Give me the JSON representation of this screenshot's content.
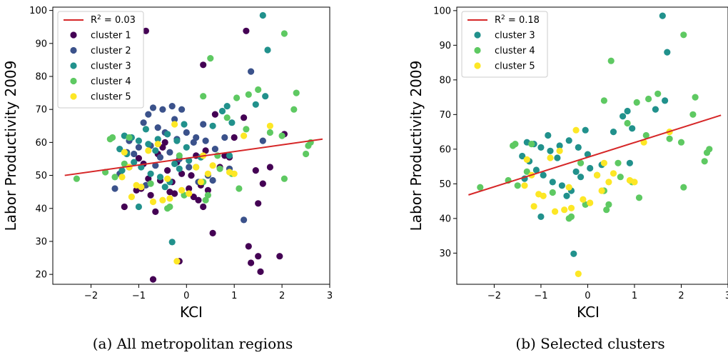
{
  "colors": {
    "cluster 1": "#440154",
    "cluster 2": "#3b528b",
    "cluster 3": "#21918c",
    "cluster 4": "#5ec962",
    "cluster 5": "#fde725",
    "fit": "#d62728"
  },
  "chart_data": [
    {
      "type": "scatter",
      "xlabel": "KCI",
      "ylabel": "Labor Productivity 2009",
      "caption": "(a) All metropolitan regions",
      "xlim": [
        -2.8,
        3.0
      ],
      "ylim": [
        17,
        101
      ],
      "xticks": [
        "−2",
        "−1",
        "0",
        "1",
        "2",
        "3"
      ],
      "xtick_values": [
        -2,
        -1,
        0,
        1,
        2,
        3
      ],
      "yticks": [
        "20",
        "30",
        "40",
        "50",
        "60",
        "70",
        "80",
        "90",
        "100"
      ],
      "ytick_values": [
        20,
        30,
        40,
        50,
        60,
        70,
        80,
        90,
        100
      ],
      "legend_placement": "upper-left",
      "fit": {
        "label_base": "R",
        "label_sup": "2",
        "label_rest": " = 0.03",
        "x": [
          -2.55,
          2.85
        ],
        "y": [
          50.0,
          61.0
        ]
      },
      "series": [
        {
          "name": "cluster 1",
          "points": [
            [
              -0.85,
              93.8
            ],
            [
              -0.7,
              18.5
            ],
            [
              1.25,
              93.8
            ],
            [
              0.35,
              83.5
            ],
            [
              -1.0,
              55.2
            ],
            [
              -0.9,
              53.5
            ],
            [
              -0.8,
              49.0
            ],
            [
              -0.6,
              56.5
            ],
            [
              -0.5,
              58.5
            ],
            [
              -0.4,
              51.5
            ],
            [
              -0.3,
              48.0
            ],
            [
              -0.2,
              54.0
            ],
            [
              -0.1,
              50.5
            ],
            [
              0.05,
              46.0
            ],
            [
              0.15,
              43.5
            ],
            [
              0.25,
              42.5
            ],
            [
              0.35,
              40.5
            ],
            [
              0.45,
              45.5
            ],
            [
              0.55,
              32.5
            ],
            [
              0.7,
              52.5
            ],
            [
              0.8,
              56.0
            ],
            [
              0.9,
              55.5
            ],
            [
              1.0,
              61.5
            ],
            [
              1.2,
              67.5
            ],
            [
              1.3,
              28.5
            ],
            [
              1.35,
              23.5
            ],
            [
              1.5,
              25.5
            ],
            [
              1.55,
              20.8
            ],
            [
              1.6,
              47.5
            ],
            [
              1.75,
              52.5
            ],
            [
              1.95,
              25.5
            ],
            [
              2.05,
              62.5
            ],
            [
              1.5,
              41.5
            ],
            [
              -0.65,
              39.0
            ],
            [
              -0.75,
              44.0
            ],
            [
              -1.2,
              52.5
            ],
            [
              -1.3,
              40.5
            ],
            [
              -0.95,
              46.0
            ],
            [
              -0.55,
              48.5
            ],
            [
              -0.25,
              44.5
            ],
            [
              0.6,
              68.5
            ],
            [
              0.4,
              57.5
            ],
            [
              -0.15,
              24.0
            ],
            [
              1.45,
              51.5
            ],
            [
              -1.05,
              45.5
            ],
            [
              0.1,
              50.0
            ],
            [
              0.2,
              56.0
            ],
            [
              -0.45,
              60.0
            ],
            [
              -0.35,
              45.0
            ],
            [
              0.3,
              47.0
            ]
          ]
        },
        {
          "name": "cluster 2",
          "points": [
            [
              -0.7,
              70.5
            ],
            [
              -0.5,
              70.0
            ],
            [
              -0.3,
              71.0
            ],
            [
              -0.1,
              70.0
            ],
            [
              1.35,
              81.5
            ],
            [
              -0.8,
              68.5
            ],
            [
              -0.9,
              66.0
            ],
            [
              -0.6,
              64.5
            ],
            [
              -0.4,
              62.5
            ],
            [
              -0.2,
              61.0
            ],
            [
              0.0,
              63.0
            ],
            [
              0.2,
              61.5
            ],
            [
              0.4,
              60.5
            ],
            [
              0.6,
              58.0
            ],
            [
              -1.0,
              58.5
            ],
            [
              -1.1,
              56.5
            ],
            [
              -1.2,
              60.5
            ],
            [
              -0.75,
              59.0
            ],
            [
              -0.55,
              55.5
            ],
            [
              -0.35,
              57.0
            ],
            [
              -0.15,
              55.0
            ],
            [
              0.05,
              52.5
            ],
            [
              0.25,
              48.0
            ],
            [
              0.45,
              50.0
            ],
            [
              -1.4,
              50.5
            ],
            [
              -1.5,
              46.0
            ],
            [
              1.2,
              36.5
            ],
            [
              -0.65,
              53.0
            ],
            [
              -0.85,
              47.0
            ],
            [
              0.15,
              60.0
            ],
            [
              0.35,
              65.5
            ],
            [
              -0.45,
              63.0
            ],
            [
              -0.25,
              67.0
            ],
            [
              0.8,
              61.5
            ],
            [
              0.9,
              52.0
            ],
            [
              -1.25,
              57.0
            ],
            [
              1.6,
              60.5
            ],
            [
              0.55,
              48.5
            ]
          ]
        },
        {
          "name": "cluster 3",
          "points": [
            [
              1.6,
              98.5
            ],
            [
              1.7,
              88.0
            ],
            [
              1.65,
              74.0
            ],
            [
              1.45,
              71.5
            ],
            [
              0.85,
              71.0
            ],
            [
              0.75,
              69.5
            ],
            [
              0.95,
              66.0
            ],
            [
              -1.3,
              62.0
            ],
            [
              -1.15,
              61.5
            ],
            [
              -1.0,
              60.5
            ],
            [
              -0.8,
              59.5
            ],
            [
              -0.6,
              61.0
            ],
            [
              -0.4,
              62.5
            ],
            [
              -0.2,
              60.5
            ],
            [
              0.0,
              58.5
            ],
            [
              -1.4,
              58.0
            ],
            [
              -1.25,
              56.5
            ],
            [
              -1.1,
              54.0
            ],
            [
              -0.95,
              52.5
            ],
            [
              -0.75,
              50.5
            ],
            [
              -0.55,
              49.5
            ],
            [
              -0.35,
              48.0
            ],
            [
              -0.15,
              52.0
            ],
            [
              0.05,
              54.5
            ],
            [
              -0.3,
              29.8
            ],
            [
              -1.0,
              40.5
            ],
            [
              0.9,
              56.0
            ],
            [
              0.55,
              65.0
            ],
            [
              -0.65,
              57.5
            ],
            [
              -0.45,
              46.5
            ],
            [
              -0.25,
              53.5
            ],
            [
              0.3,
              55.5
            ],
            [
              -1.35,
              51.5
            ],
            [
              -0.85,
              64.0
            ],
            [
              -0.05,
              65.5
            ]
          ]
        },
        {
          "name": "cluster 4",
          "points": [
            [
              2.05,
              93.0
            ],
            [
              0.5,
              85.5
            ],
            [
              2.3,
              75.0
            ],
            [
              2.25,
              70.0
            ],
            [
              1.5,
              76.0
            ],
            [
              1.3,
              74.5
            ],
            [
              1.05,
              73.5
            ],
            [
              0.85,
              67.5
            ],
            [
              0.35,
              74.0
            ],
            [
              1.75,
              63.0
            ],
            [
              2.0,
              62.0
            ],
            [
              2.05,
              49.0
            ],
            [
              2.5,
              56.5
            ],
            [
              2.55,
              59.0
            ],
            [
              2.6,
              60.0
            ],
            [
              -1.6,
              61.0
            ],
            [
              -1.55,
              61.5
            ],
            [
              -2.3,
              49.0
            ],
            [
              -1.7,
              51.0
            ],
            [
              -1.5,
              49.5
            ],
            [
              -1.3,
              53.5
            ],
            [
              -0.4,
              40.0
            ],
            [
              -0.35,
              40.5
            ],
            [
              0.4,
              42.5
            ],
            [
              0.45,
              44.0
            ],
            [
              0.35,
              48.0
            ],
            [
              0.2,
              52.5
            ],
            [
              1.1,
              46.0
            ],
            [
              0.65,
              56.0
            ],
            [
              -0.05,
              44.0
            ],
            [
              -1.2,
              61.5
            ],
            [
              0.95,
              50.5
            ],
            [
              1.25,
              64.0
            ],
            [
              -0.75,
              47.5
            ],
            [
              -0.15,
              56.0
            ],
            [
              0.7,
              52.0
            ]
          ]
        },
        {
          "name": "cluster 5",
          "points": [
            [
              -0.2,
              24.0
            ],
            [
              -1.15,
              43.5
            ],
            [
              -1.05,
              47.0
            ],
            [
              -0.95,
              46.5
            ],
            [
              -0.7,
              42.0
            ],
            [
              -0.5,
              42.5
            ],
            [
              -0.35,
              43.0
            ],
            [
              -0.1,
              45.5
            ],
            [
              0.05,
              44.5
            ],
            [
              0.3,
              48.0
            ],
            [
              0.45,
              50.5
            ],
            [
              0.55,
              53.0
            ],
            [
              0.9,
              51.0
            ],
            [
              1.0,
              50.5
            ],
            [
              1.2,
              62.0
            ],
            [
              1.75,
              65.0
            ],
            [
              -1.3,
              57.0
            ],
            [
              -1.2,
              52.5
            ],
            [
              -0.8,
              57.5
            ],
            [
              -0.6,
              59.5
            ],
            [
              -0.4,
              49.0
            ],
            [
              -0.25,
              65.5
            ],
            [
              0.2,
              52.5
            ],
            [
              0.35,
              56.0
            ],
            [
              -1.35,
              49.5
            ]
          ]
        }
      ]
    },
    {
      "type": "scatter",
      "xlabel": "KCI",
      "ylabel": "Labor Productivity 2009",
      "caption": "(b) Selected clusters",
      "xlim": [
        -2.8,
        3.0
      ],
      "ylim": [
        21,
        101
      ],
      "xticks": [
        "−2",
        "−1",
        "0",
        "1",
        "2",
        "3"
      ],
      "xtick_values": [
        -2,
        -1,
        0,
        1,
        2,
        3
      ],
      "yticks": [
        "30",
        "40",
        "50",
        "60",
        "70",
        "80",
        "90",
        "100"
      ],
      "ytick_values": [
        30,
        40,
        50,
        60,
        70,
        80,
        90,
        100
      ],
      "legend_placement": "upper-left",
      "fit": {
        "label_base": "R",
        "label_sup": "2",
        "label_rest": " = 0.18",
        "x": [
          -2.55,
          2.85
        ],
        "y": [
          46.8,
          69.8
        ]
      },
      "series_ref": [
        "cluster 3",
        "cluster 4",
        "cluster 5"
      ]
    }
  ]
}
